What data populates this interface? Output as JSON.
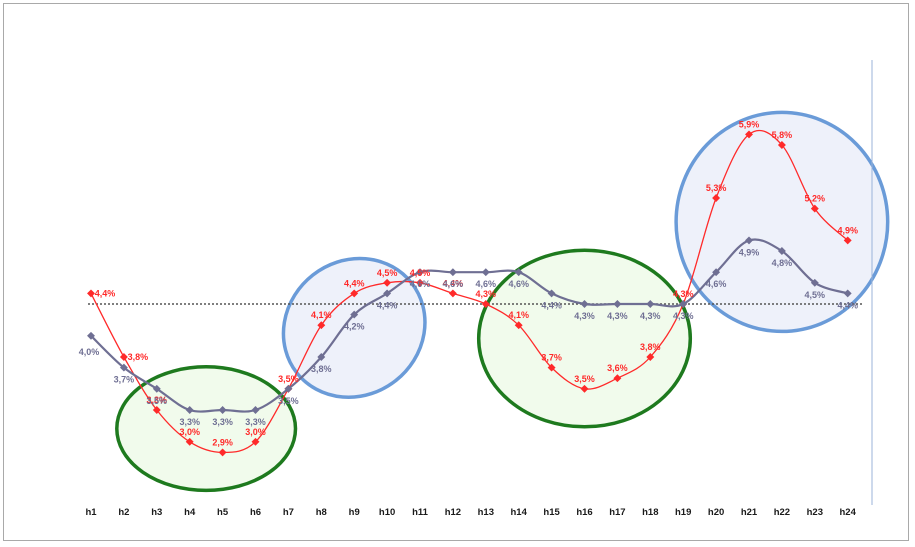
{
  "chart_data": {
    "type": "line",
    "categories": [
      "h1",
      "h2",
      "h3",
      "h4",
      "h5",
      "h6",
      "h7",
      "h8",
      "h9",
      "h10",
      "h11",
      "h12",
      "h13",
      "h14",
      "h15",
      "h16",
      "h17",
      "h18",
      "h19",
      "h20",
      "h21",
      "h22",
      "h23",
      "h24"
    ],
    "series": [
      {
        "color": "#ff2a2a",
        "values": [
          4.4,
          3.8,
          3.3,
          3.0,
          2.9,
          3.0,
          3.5,
          4.1,
          4.4,
          4.5,
          4.5,
          4.4,
          4.3,
          4.1,
          3.7,
          3.5,
          3.6,
          3.8,
          4.3,
          5.3,
          5.9,
          5.8,
          5.2,
          4.9
        ],
        "labels": [
          "4,4%",
          "3,8%",
          "3,3%",
          "3,0%",
          "2,9%",
          "3,0%",
          "3,5%",
          "4,1%",
          "4,4%",
          "4,5%",
          "4,5%",
          "4,4%",
          "4,3%",
          "4,1%",
          "3,7%",
          "3,5%",
          "3,6%",
          "3,8%",
          "4,3%",
          "5,3%",
          "5,9%",
          "5,8%",
          "5,2%",
          "4,9%"
        ]
      },
      {
        "color": "#6f6f93",
        "values": [
          4.0,
          3.7,
          3.5,
          3.3,
          3.3,
          3.3,
          3.5,
          3.8,
          4.2,
          4.4,
          4.6,
          4.6,
          4.6,
          4.6,
          4.4,
          4.3,
          4.3,
          4.3,
          4.3,
          4.6,
          4.9,
          4.8,
          4.5,
          4.4
        ],
        "labels": [
          "4,0%",
          "3,7%",
          "3,5%",
          "3,3%",
          "3,3%",
          "3,3%",
          "3,5%",
          "3,8%",
          "4,2%",
          "4,4%",
          "4,6%",
          "4,6%",
          "4,6%",
          "4,6%",
          "4,4%",
          "4,3%",
          "4,3%",
          "4,3%",
          "4,3%",
          "4,6%",
          "4,9%",
          "4,8%",
          "4,5%",
          "4,4%"
        ]
      }
    ],
    "reference_line": {
      "value": 4.3,
      "style": "dotted",
      "color": "#555555"
    },
    "highlights": [
      {
        "shape": "ellipse",
        "color": "#1e7a1e",
        "fill": "#f1fbec",
        "covers": [
          "h3",
          "h6"
        ]
      },
      {
        "shape": "ellipse",
        "color": "#6a9bd8",
        "fill": "#eef1fa",
        "covers": [
          "h8",
          "h10"
        ]
      },
      {
        "shape": "ellipse",
        "color": "#1e7a1e",
        "fill": "#f1fbec",
        "covers": [
          "h14",
          "h18"
        ]
      },
      {
        "shape": "ellipse",
        "color": "#6a9bd8",
        "fill": "#eef1fa",
        "covers": [
          "h20",
          "h24"
        ]
      }
    ],
    "grid": false,
    "legend": "none"
  }
}
